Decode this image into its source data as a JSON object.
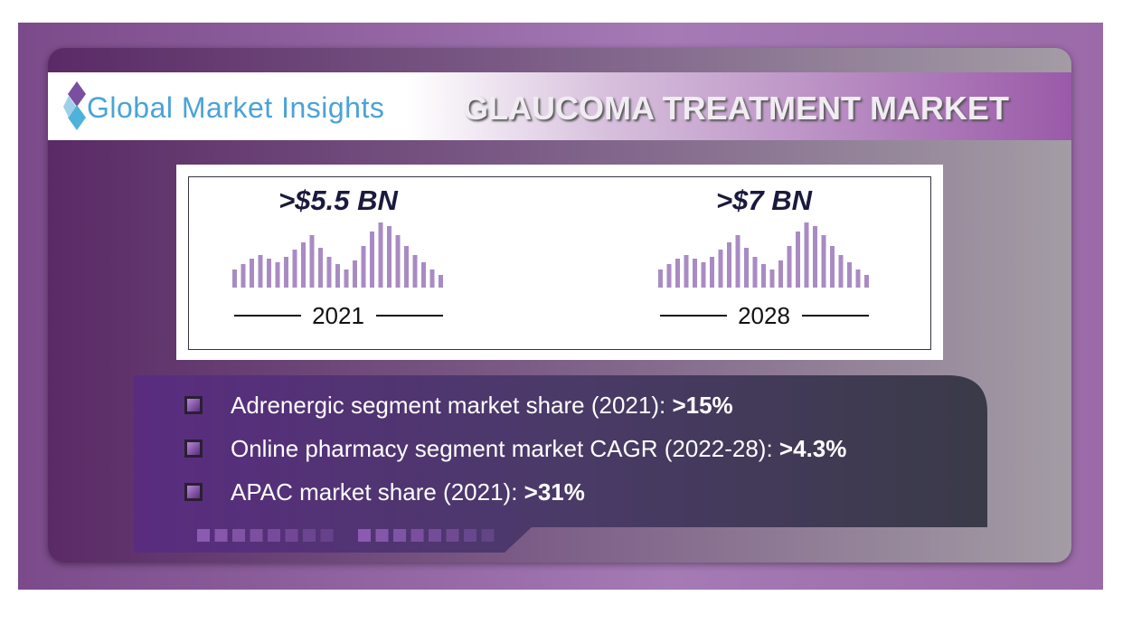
{
  "header": {
    "brand": "Global Market Insights",
    "title": "GLAUCOMA TREATMENT MARKET"
  },
  "stats": [
    {
      "value": ">$5.5 BN",
      "year": "2021"
    },
    {
      "value": ">$7 BN",
      "year": "2028"
    }
  ],
  "highlights": [
    {
      "text": "Adrenergic segment market share (2021): ",
      "value": ">15%"
    },
    {
      "text": "Online pharmacy segment market CAGR (2022-28): ",
      "value": ">4.3%"
    },
    {
      "text": "APAC market share (2021): ",
      "value": ">31%"
    }
  ]
}
